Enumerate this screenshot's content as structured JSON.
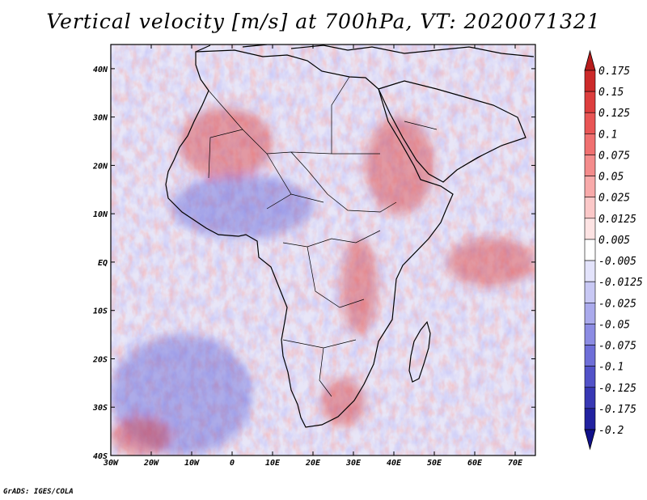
{
  "title": "Vertical velocity [m/s] at 700hPa, VT: 2020071321",
  "credit": "GrADS: IGES/COLA",
  "axes": {
    "lon_range": [
      -30,
      75
    ],
    "lat_range": [
      -40,
      45
    ],
    "lon_ticks": [
      {
        "value": -30,
        "label": "30W"
      },
      {
        "value": -20,
        "label": "20W"
      },
      {
        "value": -10,
        "label": "10W"
      },
      {
        "value": 0,
        "label": "0"
      },
      {
        "value": 10,
        "label": "10E"
      },
      {
        "value": 20,
        "label": "20E"
      },
      {
        "value": 30,
        "label": "30E"
      },
      {
        "value": 40,
        "label": "40E"
      },
      {
        "value": 50,
        "label": "50E"
      },
      {
        "value": 60,
        "label": "60E"
      },
      {
        "value": 70,
        "label": "70E"
      }
    ],
    "lat_ticks": [
      {
        "value": 40,
        "label": "40N"
      },
      {
        "value": 30,
        "label": "30N"
      },
      {
        "value": 20,
        "label": "20N"
      },
      {
        "value": 10,
        "label": "10N"
      },
      {
        "value": 0,
        "label": "EQ"
      },
      {
        "value": -10,
        "label": "10S"
      },
      {
        "value": -20,
        "label": "20S"
      },
      {
        "value": -30,
        "label": "30S"
      },
      {
        "value": -40,
        "label": "40S"
      }
    ]
  },
  "colorbar": {
    "labels": [
      "0.175",
      "0.15",
      "0.125",
      "0.1",
      "0.075",
      "0.05",
      "0.025",
      "0.0125",
      "0.005",
      "-0.005",
      "-0.0125",
      "-0.025",
      "-0.05",
      "-0.075",
      "-0.1",
      "-0.125",
      "-0.175",
      "-0.2"
    ],
    "colors": [
      "#b71c1c",
      "#cc2a2a",
      "#dd3e3e",
      "#e95555",
      "#f07070",
      "#f48c8c",
      "#f8aaaa",
      "#fbc8c8",
      "#fde3e3",
      "#ffffff",
      "#e3e3fb",
      "#c8c8f4",
      "#aaaaec",
      "#8c8ce3",
      "#6e6ed8",
      "#5252c8",
      "#3838b4",
      "#2222a0",
      "#10108a"
    ]
  },
  "regions": [
    {
      "name": "west-sahara",
      "sign": "up",
      "lon_range": [
        -13,
        10
      ],
      "lat_range": [
        17,
        32
      ]
    },
    {
      "name": "ethiopian-highlands",
      "sign": "up",
      "lon_range": [
        33,
        50
      ],
      "lat_range": [
        10,
        30
      ]
    },
    {
      "name": "sahel-convection",
      "sign": "down",
      "lon_range": [
        -15,
        20
      ],
      "lat_range": [
        5,
        18
      ]
    },
    {
      "name": "east-african-rift",
      "sign": "up",
      "lon_range": [
        27,
        36
      ],
      "lat_range": [
        -15,
        5
      ]
    },
    {
      "name": "southern-africa-east",
      "sign": "up",
      "lon_range": [
        22,
        33
      ],
      "lat_range": [
        -34,
        -24
      ]
    },
    {
      "name": "indian-ocean-band",
      "sign": "up",
      "lon_range": [
        53,
        75
      ],
      "lat_range": [
        -5,
        5
      ]
    },
    {
      "name": "south-atlantic-swell",
      "sign": "down",
      "lon_range": [
        -30,
        5
      ],
      "lat_range": [
        -40,
        -15
      ]
    },
    {
      "name": "southern-ocean-streaks",
      "sign": "up",
      "lon_range": [
        -30,
        -15
      ],
      "lat_range": [
        -40,
        -32
      ]
    }
  ]
}
